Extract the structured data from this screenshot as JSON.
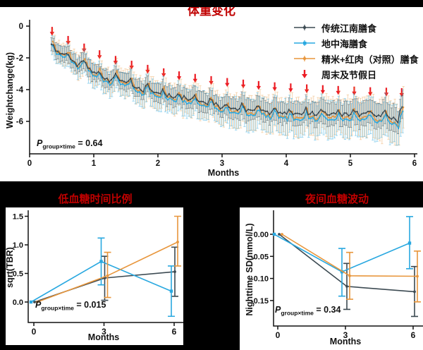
{
  "figure": {
    "background_color": "#000000",
    "title_color": "#C00000",
    "text_color": "#111111"
  },
  "chart_data": [
    {
      "id": "weight-change",
      "type": "line",
      "title": "体重变化",
      "xlabel": "Months",
      "ylabel": "Weightchange(kg)",
      "xlim": [
        0,
        6
      ],
      "ylim": [
        -8,
        0.3
      ],
      "grid": false,
      "legend_position": "top-right",
      "xticks": [
        {
          "v": 0,
          "label": "0"
        },
        {
          "v": 1,
          "label": "1"
        },
        {
          "v": 2,
          "label": "2"
        },
        {
          "v": 3,
          "label": "3"
        },
        {
          "v": 4,
          "label": "4"
        },
        {
          "v": 5,
          "label": "5"
        },
        {
          "v": 6,
          "label": "6"
        }
      ],
      "yticks": [
        {
          "v": 0,
          "label": "0"
        },
        {
          "v": -2,
          "label": "-2"
        },
        {
          "v": -4,
          "label": "-4"
        },
        {
          "v": -6,
          "label": "-6"
        }
      ],
      "p_label": {
        "prefix": "P",
        "sub": "group×time",
        "value": "= 0.64"
      },
      "sampling": {
        "start_month": 0.35,
        "end_month": 5.83,
        "points_per_month": 30
      },
      "trend_anchors": [
        [
          0.35,
          -1.4
        ],
        [
          0.5,
          -1.85
        ],
        [
          0.62,
          -2.1
        ],
        [
          0.75,
          -2.6
        ],
        [
          0.88,
          -2.55
        ],
        [
          1.0,
          -3.1
        ],
        [
          1.12,
          -3.3
        ],
        [
          1.25,
          -3.5
        ],
        [
          1.38,
          -3.45
        ],
        [
          1.5,
          -3.6
        ],
        [
          1.62,
          -4.0
        ],
        [
          1.75,
          -4.2
        ],
        [
          1.88,
          -4.1
        ],
        [
          2.0,
          -4.35
        ],
        [
          2.12,
          -4.5
        ],
        [
          2.25,
          -4.6
        ],
        [
          2.38,
          -4.65
        ],
        [
          2.5,
          -4.7
        ],
        [
          2.62,
          -4.85
        ],
        [
          2.75,
          -4.95
        ],
        [
          2.88,
          -5.0
        ],
        [
          3.0,
          -5.3
        ],
        [
          3.12,
          -5.3
        ],
        [
          3.25,
          -5.4
        ],
        [
          3.38,
          -5.45
        ],
        [
          3.5,
          -5.6
        ],
        [
          3.62,
          -5.4
        ],
        [
          3.75,
          -5.65
        ],
        [
          3.88,
          -5.65
        ],
        [
          4.0,
          -5.75
        ],
        [
          4.12,
          -5.7
        ],
        [
          4.25,
          -5.8
        ],
        [
          4.38,
          -5.75
        ],
        [
          4.5,
          -5.75
        ],
        [
          4.62,
          -5.7
        ],
        [
          4.75,
          -5.8
        ],
        [
          4.88,
          -5.75
        ],
        [
          5.0,
          -5.8
        ],
        [
          5.12,
          -5.75
        ],
        [
          5.25,
          -5.8
        ],
        [
          5.38,
          -5.8
        ],
        [
          5.5,
          -5.9
        ],
        [
          5.62,
          -5.95
        ],
        [
          5.75,
          -6.2
        ],
        [
          5.83,
          -5.3
        ]
      ],
      "weekly_cycle": {
        "period_months": 0.2477,
        "phase_month": 0.35,
        "amplitude": 0.42
      },
      "noise_amplitude": 0.13,
      "series": [
        {
          "name": "传统江南膳食",
          "color": "#3C4A52",
          "marker": "dot",
          "offset_start": 0.1,
          "offset_end": 0.25,
          "bump_scale": 0.7,
          "errorbar_start": 0.45,
          "errorbar_end": 0.8,
          "error_opacity": 0.55
        },
        {
          "name": "地中海膳食",
          "color": "#29A8E0",
          "marker": "square",
          "offset_start": -0.05,
          "offset_end": -0.15,
          "bump_scale": 1.0,
          "errorbar_start": 0.6,
          "errorbar_end": 1.25,
          "error_opacity": 0.5
        },
        {
          "name": "精米+红肉（对照）膳食",
          "color": "#E8963C",
          "marker": "dot",
          "offset_start": 0.05,
          "offset_end": -0.05,
          "bump_scale": 1.25,
          "errorbar_start": 0.65,
          "errorbar_end": 1.35,
          "error_opacity": 0.42
        }
      ],
      "weekend_arrows": {
        "label": "周末及节假日",
        "color": "#EC1C24",
        "positions": [
          [
            0.35,
            -0.05
          ],
          [
            0.6,
            -0.62
          ],
          [
            0.85,
            -1.1
          ],
          [
            1.09,
            -1.52
          ],
          [
            1.34,
            -1.88
          ],
          [
            1.59,
            -2.18
          ],
          [
            1.84,
            -2.44
          ],
          [
            2.09,
            -2.66
          ],
          [
            2.33,
            -2.85
          ],
          [
            2.58,
            -3.01
          ],
          [
            2.83,
            -3.15
          ],
          [
            3.08,
            -3.27
          ],
          [
            3.33,
            -3.37
          ],
          [
            3.57,
            -3.46
          ],
          [
            3.82,
            -3.54
          ],
          [
            4.07,
            -3.61
          ],
          [
            4.32,
            -3.67
          ],
          [
            4.57,
            -3.72
          ],
          [
            4.81,
            -3.77
          ],
          [
            5.06,
            -3.81
          ],
          [
            5.31,
            -3.85
          ],
          [
            5.56,
            -3.88
          ],
          [
            5.8,
            -3.91
          ]
        ]
      }
    },
    {
      "id": "time-below-range",
      "type": "line",
      "title": "低血糖时间比例",
      "xlabel": "Months",
      "ylabel": "sqrt(TBR)",
      "x": [
        0,
        3,
        6
      ],
      "ylim": [
        -0.35,
        1.6
      ],
      "grid": false,
      "yticks": [
        {
          "v": 0,
          "label": "0.0"
        },
        {
          "v": 0.5,
          "label": "0.5"
        },
        {
          "v": 1.0,
          "label": "1.0"
        },
        {
          "v": 1.5,
          "label": "1.5"
        }
      ],
      "p_label": {
        "prefix": "P",
        "sub": "group×time",
        "value": "= 0.015"
      },
      "series": [
        {
          "name": "传统江南膳食",
          "color": "#3C4A52",
          "marker": "dot",
          "dodge": 1,
          "values": [
            0,
            0.42,
            0.53
          ],
          "err_low": [
            0,
            0.03,
            0.1
          ],
          "err_high": [
            0,
            0.8,
            0.96
          ]
        },
        {
          "name": "地中海膳食",
          "color": "#29A8E0",
          "marker": "square",
          "dodge": -4,
          "values": [
            0,
            0.71,
            0.19
          ],
          "err_low": [
            0,
            0.3,
            -0.25
          ],
          "err_high": [
            0,
            1.12,
            0.63
          ]
        },
        {
          "name": "精米+红肉（对照）膳食",
          "color": "#E8963C",
          "marker": "dot",
          "dodge": 5,
          "values": [
            0,
            0.46,
            1.05
          ],
          "err_low": [
            0,
            0.08,
            0.63
          ],
          "err_high": [
            0,
            0.87,
            1.5
          ]
        }
      ]
    },
    {
      "id": "nighttime-sd",
      "type": "line",
      "title": "夜间血糖波动",
      "xlabel": "Months",
      "ylabel": "Nighttime SD(mmol/L)",
      "x": [
        0,
        3,
        6
      ],
      "ylim": [
        -0.21,
        0.055
      ],
      "grid": false,
      "yticks": [
        {
          "v": 0,
          "label": "0.00"
        },
        {
          "v": -0.05,
          "label": "-0.05"
        },
        {
          "v": -0.1,
          "label": "-0.10"
        },
        {
          "v": -0.15,
          "label": "-0.15"
        }
      ],
      "p_label": {
        "prefix": "P",
        "sub": "group×time",
        "value": "= 0.34"
      },
      "series": [
        {
          "name": "传统江南膳食",
          "color": "#3C4A52",
          "marker": "dot",
          "dodge": 2,
          "values": [
            0,
            -0.118,
            -0.13
          ],
          "err_low": [
            0,
            -0.17,
            -0.186
          ],
          "err_high": [
            0,
            -0.066,
            -0.073
          ]
        },
        {
          "name": "地中海膳食",
          "color": "#29A8E0",
          "marker": "square",
          "dodge": -5,
          "values": [
            0,
            -0.085,
            -0.02
          ],
          "err_low": [
            0,
            -0.14,
            -0.078
          ],
          "err_high": [
            0,
            -0.032,
            0.04
          ]
        },
        {
          "name": "精米+红肉（对照）膳食",
          "color": "#E8963C",
          "marker": "dot",
          "dodge": 6,
          "values": [
            0,
            -0.094,
            -0.095
          ],
          "err_low": [
            0,
            -0.147,
            -0.153
          ],
          "err_high": [
            0,
            -0.041,
            -0.038
          ]
        }
      ]
    }
  ]
}
